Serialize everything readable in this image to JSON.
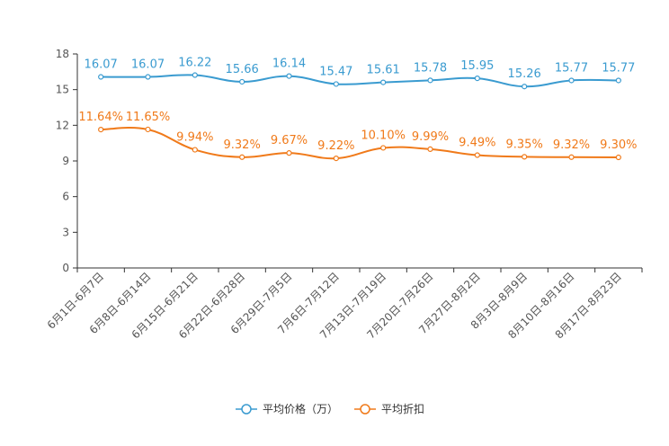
{
  "chart_data": {
    "type": "line",
    "title": "",
    "xlabel": "",
    "ylabel": "",
    "ylim": [
      0,
      18
    ],
    "yticks": [
      0,
      3,
      6,
      9,
      12,
      15,
      18
    ],
    "categories": [
      "6月1日-6月7日",
      "6月8日-6月14日",
      "6月15日-6月21日",
      "6月22日-6月28日",
      "6月29日-7月5日",
      "7月6日-7月12日",
      "7月13日-7月19日",
      "7月20日-7月26日",
      "7月27日-8月2日",
      "8月3日-8月9日",
      "8月10日-8月16日",
      "8月17日-8月23日"
    ],
    "series": [
      {
        "name": "平均价格（万）",
        "color": "#3a9bd0",
        "values": [
          16.07,
          16.07,
          16.22,
          15.66,
          16.14,
          15.47,
          15.61,
          15.78,
          15.95,
          15.26,
          15.77,
          15.77
        ],
        "labels": [
          "16.07",
          "16.07",
          "16.22",
          "15.66",
          "16.14",
          "15.47",
          "15.61",
          "15.78",
          "15.95",
          "15.26",
          "15.77",
          "15.77"
        ]
      },
      {
        "name": "平均折扣",
        "color": "#f07a1a",
        "values": [
          11.64,
          11.65,
          9.94,
          9.32,
          9.67,
          9.22,
          10.1,
          9.99,
          9.49,
          9.35,
          9.32,
          9.3
        ],
        "labels": [
          "11.64%",
          "11.65%",
          "9.94%",
          "9.32%",
          "9.67%",
          "9.22%",
          "10.10%",
          "9.99%",
          "9.49%",
          "9.35%",
          "9.32%",
          "9.30%"
        ]
      }
    ],
    "legend_position": "bottom-center"
  }
}
